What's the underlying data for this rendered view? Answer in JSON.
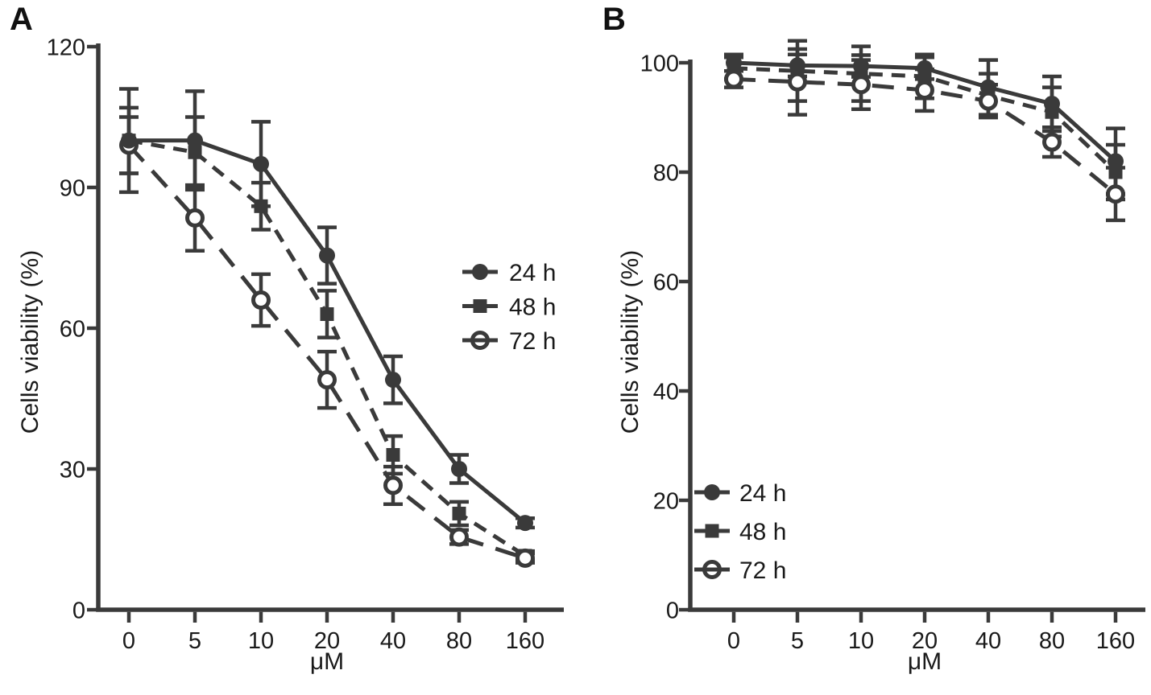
{
  "figure": {
    "background": "#ffffff",
    "ink_color": "#3a3a3a",
    "text_color": "#1a1a1a"
  },
  "chart_data": [
    {
      "type": "line",
      "panel_label": "A",
      "xlabel": "μM",
      "ylabel": "Cells viability (%)",
      "x_categories": [
        "0",
        "5",
        "10",
        "20",
        "40",
        "80",
        "160"
      ],
      "ylim": [
        0,
        120
      ],
      "yticks": [
        0,
        30,
        60,
        90,
        120
      ],
      "grid": false,
      "legend_position": "middle-right",
      "series": [
        {
          "name": "24 h",
          "marker": "filled-circle",
          "line_style": "solid",
          "values": [
            100,
            100,
            95,
            75.5,
            49,
            30,
            18.5
          ],
          "errors": [
            11,
            10.5,
            9,
            6,
            5,
            3,
            1
          ]
        },
        {
          "name": "48 h",
          "marker": "filled-square",
          "line_style": "dashed",
          "values": [
            100,
            97.5,
            86,
            63,
            33,
            20.5,
            11.5
          ],
          "errors": [
            7,
            7.5,
            5,
            5,
            4,
            2.5,
            1
          ]
        },
        {
          "name": "72 h",
          "marker": "open-circle",
          "line_style": "long-dashed",
          "values": [
            99,
            83.5,
            66,
            49,
            26.5,
            15.5,
            11
          ],
          "errors": [
            6,
            7,
            5.5,
            6,
            4,
            1.5,
            1
          ]
        }
      ]
    },
    {
      "type": "line",
      "panel_label": "B",
      "xlabel": "μM",
      "ylabel": "Cells viability (%)",
      "x_categories": [
        "0",
        "5",
        "10",
        "20",
        "40",
        "80",
        "160"
      ],
      "ylim": [
        0,
        100
      ],
      "yticks": [
        0,
        20,
        40,
        60,
        80,
        100
      ],
      "grid": false,
      "legend_position": "bottom-left",
      "series": [
        {
          "name": "24 h",
          "marker": "filled-circle",
          "line_style": "solid",
          "values": [
            100,
            99.5,
            99.4,
            99,
            95.5,
            92.5,
            82
          ],
          "errors": [
            1.5,
            2,
            2,
            2,
            5,
            5,
            6
          ]
        },
        {
          "name": "48 h",
          "marker": "filled-square",
          "line_style": "dashed",
          "values": [
            99,
            98.5,
            98,
            97.5,
            94,
            91,
            80
          ],
          "errors": [
            2,
            5.5,
            5,
            4,
            4,
            4.5,
            5
          ]
        },
        {
          "name": "72 h",
          "marker": "open-circle",
          "line_style": "long-dashed",
          "values": [
            97,
            96.5,
            96,
            95,
            93,
            85.5,
            76
          ],
          "errors": [
            1.5,
            6,
            4.5,
            3.8,
            3,
            2.7,
            4.8
          ]
        }
      ]
    }
  ]
}
